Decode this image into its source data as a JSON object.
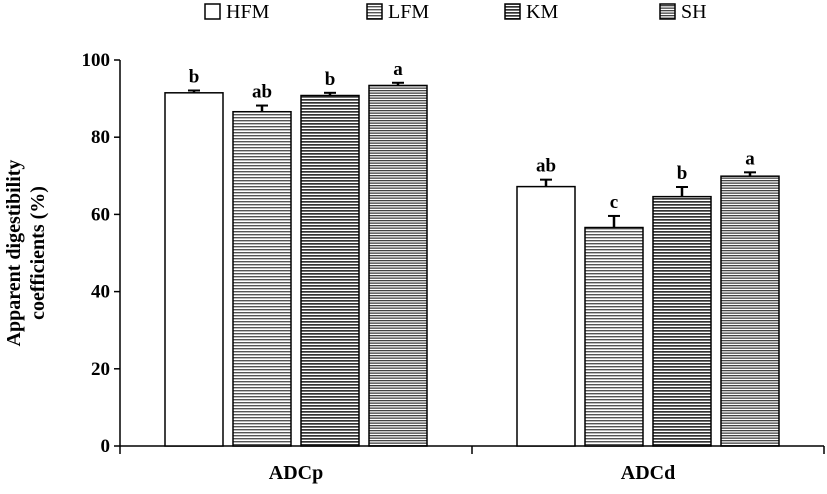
{
  "chart_data": {
    "type": "bar",
    "categories": [
      "ADCp",
      "ADCd"
    ],
    "ylabel_lines": [
      "Apparent digestibility",
      "coefficients (%)"
    ],
    "ylim": [
      0,
      100
    ],
    "yticks": [
      0,
      20,
      40,
      60,
      80,
      100
    ],
    "legend_position": "top",
    "grid": false,
    "series": [
      {
        "name": "HFM",
        "pattern": "white",
        "values": [
          91.5,
          67.2
        ],
        "errors": [
          0.6,
          1.8
        ],
        "significance": [
          "b",
          "ab"
        ]
      },
      {
        "name": "LFM",
        "pattern": "horizontal-lines",
        "values": [
          86.6,
          56.6
        ],
        "errors": [
          1.6,
          3.0
        ],
        "significance": [
          "ab",
          "c"
        ]
      },
      {
        "name": "KM",
        "pattern": "horizontal-lines-dark",
        "values": [
          90.8,
          64.6
        ],
        "errors": [
          0.7,
          2.5
        ],
        "significance": [
          "b",
          "b"
        ]
      },
      {
        "name": "SH",
        "pattern": "horizontal-lines-fine",
        "values": [
          93.4,
          69.9
        ],
        "errors": [
          0.7,
          1.0
        ],
        "significance": [
          "a",
          "a"
        ]
      }
    ]
  }
}
